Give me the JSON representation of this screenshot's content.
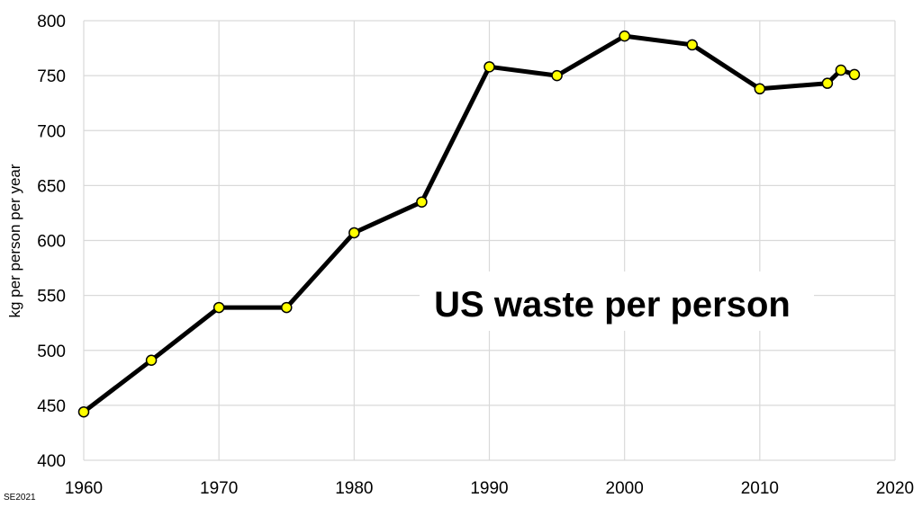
{
  "chart_data": {
    "type": "line",
    "title": "US waste per person",
    "xlabel": "",
    "ylabel": "kg per person per year",
    "xlim": [
      1960,
      2020
    ],
    "ylim": [
      400,
      800
    ],
    "x_ticks": [
      1960,
      1970,
      1980,
      1990,
      2000,
      2010,
      2020
    ],
    "y_ticks": [
      400,
      450,
      500,
      550,
      600,
      650,
      700,
      750,
      800
    ],
    "grid": true,
    "legend": "none",
    "series": [
      {
        "x": [
          1960,
          1965,
          1970,
          1975,
          1980,
          1985,
          1990,
          1995,
          2000,
          2005,
          2010,
          2015,
          2016,
          2017
        ],
        "y": [
          444,
          491,
          539,
          539,
          607,
          635,
          758,
          750,
          786,
          778,
          738,
          743,
          755,
          751
        ]
      }
    ],
    "colors": {
      "line": "#000000",
      "marker_fill": "#ffff00",
      "marker_stroke": "#000000",
      "grid": "#d9d9d9"
    },
    "credit": "SE2021"
  }
}
